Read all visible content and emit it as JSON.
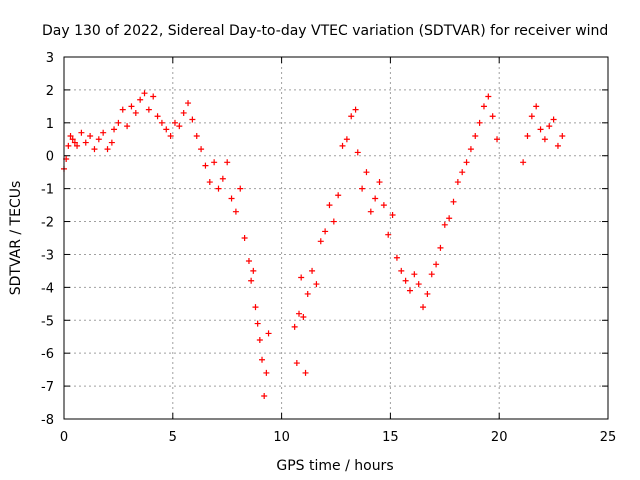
{
  "chart_data": {
    "type": "scatter",
    "title": "Day 130 of 2022, Sidereal Day-to-day VTEC variation (SDTVAR) for receiver wind",
    "xlabel": "GPS time / hours",
    "ylabel": "SDTVAR / TECUs",
    "xlim": [
      0,
      25
    ],
    "ylim": [
      -8,
      3
    ],
    "xticks": [
      0,
      5,
      10,
      15,
      20,
      25
    ],
    "yticks": [
      3,
      2,
      1,
      0,
      -1,
      -2,
      -3,
      -4,
      -5,
      -6,
      -7,
      -8
    ],
    "xtick_labels": [
      "0",
      "5",
      "10",
      "15",
      "20",
      "25"
    ],
    "ytick_labels": [
      "3",
      "2",
      "1",
      "0",
      "-1",
      "-2",
      "-3",
      "-4",
      "-5",
      "-6",
      "-7",
      "-8"
    ],
    "grid": true,
    "marker": "+",
    "color": "#ff0000",
    "series": [
      {
        "name": "SDTVAR",
        "x": [
          0.0,
          0.1,
          0.2,
          0.3,
          0.4,
          0.5,
          0.6,
          0.8,
          1.0,
          1.2,
          1.4,
          1.6,
          1.8,
          2.0,
          2.2,
          2.3,
          2.5,
          2.7,
          2.9,
          3.1,
          3.3,
          3.5,
          3.7,
          3.9,
          4.1,
          4.3,
          4.5,
          4.7,
          4.9,
          5.1,
          5.3,
          5.5,
          5.7,
          5.9,
          6.1,
          6.3,
          6.5,
          6.7,
          6.9,
          7.1,
          7.3,
          7.5,
          7.7,
          7.9,
          8.1,
          8.3,
          8.5,
          8.6,
          8.7,
          8.8,
          8.9,
          9.0,
          9.1,
          9.2,
          9.3,
          9.4,
          10.6,
          10.7,
          10.8,
          10.9,
          11.0,
          11.1,
          11.2,
          11.4,
          11.6,
          11.8,
          12.0,
          12.2,
          12.4,
          12.6,
          12.8,
          13.0,
          13.2,
          13.4,
          13.5,
          13.7,
          13.9,
          14.1,
          14.3,
          14.5,
          14.7,
          14.9,
          15.1,
          15.3,
          15.5,
          15.7,
          15.9,
          16.1,
          16.3,
          16.5,
          16.7,
          16.9,
          17.1,
          17.3,
          17.5,
          17.7,
          17.9,
          18.1,
          18.3,
          18.5,
          18.7,
          18.9,
          19.1,
          19.3,
          19.5,
          19.7,
          19.9,
          21.1,
          21.3,
          21.5,
          21.7,
          21.9,
          22.1,
          22.3,
          22.5,
          22.7,
          22.9
        ],
        "values": [
          -0.4,
          -0.1,
          0.3,
          0.6,
          0.5,
          0.4,
          0.3,
          0.7,
          0.4,
          0.6,
          0.2,
          0.5,
          0.7,
          0.2,
          0.4,
          0.8,
          1.0,
          1.4,
          0.9,
          1.5,
          1.3,
          1.7,
          1.9,
          1.4,
          1.8,
          1.2,
          1.0,
          0.8,
          0.6,
          1.0,
          0.9,
          1.3,
          1.6,
          1.1,
          0.6,
          0.2,
          -0.3,
          -0.8,
          -0.2,
          -1.0,
          -0.7,
          -0.2,
          -1.3,
          -1.7,
          -1.0,
          -2.5,
          -3.2,
          -3.8,
          -3.5,
          -4.6,
          -5.1,
          -5.6,
          -6.2,
          -7.3,
          -6.6,
          -5.4,
          -5.2,
          -6.3,
          -4.8,
          -3.7,
          -4.9,
          -6.6,
          -4.2,
          -3.5,
          -3.9,
          -2.6,
          -2.3,
          -1.5,
          -2.0,
          -1.2,
          0.3,
          0.5,
          1.2,
          1.4,
          0.1,
          -1.0,
          -0.5,
          -1.7,
          -1.3,
          -0.8,
          -1.5,
          -2.4,
          -1.8,
          -3.1,
          -3.5,
          -3.8,
          -4.1,
          -3.6,
          -3.9,
          -4.6,
          -4.2,
          -3.6,
          -3.3,
          -2.8,
          -2.1,
          -1.9,
          -1.4,
          -0.8,
          -0.5,
          -0.2,
          0.2,
          0.6,
          1.0,
          1.5,
          1.8,
          1.2,
          0.5,
          -0.2,
          0.6,
          1.2,
          1.5,
          0.8,
          0.5,
          0.9,
          1.1,
          0.3,
          0.6
        ]
      }
    ]
  }
}
